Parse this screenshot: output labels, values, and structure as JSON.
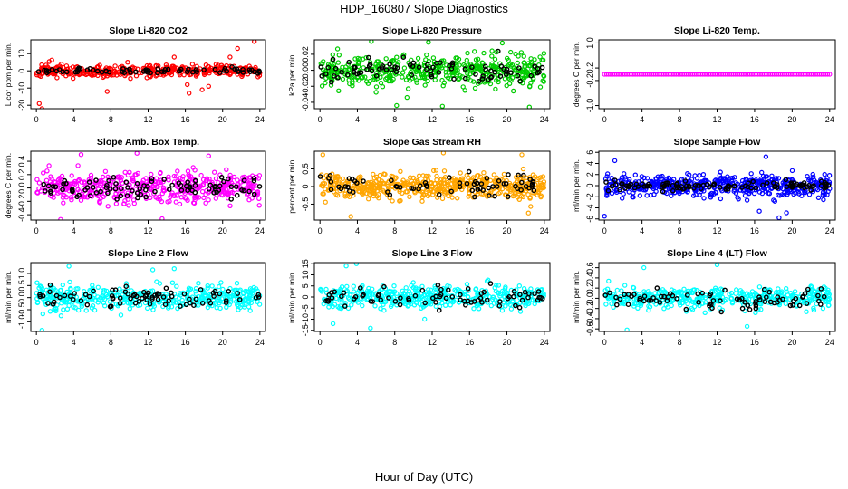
{
  "title": "HDP_160807  Slope Diagnostics",
  "xlabel": "Hour of Day (UTC)",
  "chart_data": [
    {
      "type": "scatter",
      "title": "Slope Li-820 CO2",
      "ylabel": "Licor ppm per min.",
      "color": "#ff0000",
      "xlim": [
        0,
        24
      ],
      "ylim": [
        -22,
        18
      ],
      "xticks": [
        0,
        4,
        8,
        12,
        16,
        20,
        24
      ],
      "yticks": [
        -20,
        -10,
        0,
        10
      ],
      "ytick_labels": [
        "-20",
        "-10",
        "0",
        "10"
      ],
      "spread": 3.2,
      "black_spread": 1.6,
      "density": 380,
      "black_density": 70,
      "seed": 11,
      "extra_points": [
        [
          0.3,
          -19
        ],
        [
          7.6,
          -12
        ],
        [
          16.2,
          -8
        ],
        [
          16.4,
          -13
        ],
        [
          17.8,
          -11
        ],
        [
          18.5,
          -9
        ],
        [
          21.6,
          13
        ],
        [
          23.4,
          17
        ],
        [
          20.8,
          8
        ],
        [
          14.8,
          8
        ],
        [
          9.8,
          5
        ],
        [
          0.6,
          -22
        ]
      ]
    },
    {
      "type": "scatter",
      "title": "Slope Li-820 Pressure",
      "ylabel": "kPa per min.",
      "color": "#00cc00",
      "xlim": [
        0,
        24
      ],
      "ylim": [
        -0.048,
        0.038
      ],
      "xticks": [
        0,
        4,
        8,
        12,
        16,
        20,
        24
      ],
      "yticks": [
        -0.04,
        -0.02,
        0.0,
        0.02
      ],
      "ytick_labels": [
        "-0.04",
        "-0.02",
        "0.00",
        "0.02"
      ],
      "spread": 0.017,
      "black_spread": 0.014,
      "density": 460,
      "black_density": 85,
      "seed": 23,
      "extra_points": [
        [
          19.5,
          0.034
        ],
        [
          5.5,
          0.036
        ],
        [
          11.6,
          0.035
        ],
        [
          22.4,
          -0.046
        ],
        [
          13.1,
          -0.045
        ],
        [
          8.2,
          -0.044
        ]
      ]
    },
    {
      "type": "scatter",
      "title": "Slope Li-820 Temp.",
      "ylabel": "degrees C per min.",
      "color": "#ff00ff",
      "xlim": [
        0,
        24
      ],
      "ylim": [
        -1.1,
        1.1
      ],
      "xticks": [
        0,
        4,
        8,
        12,
        16,
        20,
        24
      ],
      "yticks": [
        -1.0,
        -0.2,
        0.2,
        1.0
      ],
      "ytick_labels": [
        "-1.0",
        "-0.2",
        "0.2",
        "1.0"
      ],
      "spread": 0.0,
      "black_spread": 0.0,
      "density": 110,
      "black_density": 0,
      "seed": 5,
      "flat": true,
      "extra_points": []
    },
    {
      "type": "scatter",
      "title": "Slope Amb. Box Temp.",
      "ylabel": "degrees C per min.",
      "color": "#ff00ff",
      "xlim": [
        0,
        24
      ],
      "ylim": [
        -0.48,
        0.55
      ],
      "xticks": [
        0,
        4,
        8,
        12,
        16,
        20,
        24
      ],
      "yticks": [
        -0.4,
        -0.2,
        0.0,
        0.2,
        0.4
      ],
      "ytick_labels": [
        "-0.4",
        "-0.2",
        "0.0",
        "0.2",
        "0.4"
      ],
      "spread": 0.2,
      "black_spread": 0.17,
      "density": 470,
      "black_density": 90,
      "seed": 37,
      "extra_points": [
        [
          4.8,
          0.5
        ],
        [
          10.8,
          0.52
        ],
        [
          13.5,
          -0.46
        ],
        [
          2.6,
          -0.47
        ],
        [
          18.5,
          0.48
        ]
      ]
    },
    {
      "type": "scatter",
      "title": "Slope Gas Stream RH",
      "ylabel": "percent per min.",
      "color": "#ffa500",
      "xlim": [
        0,
        24
      ],
      "ylim": [
        -0.95,
        1.0
      ],
      "xticks": [
        0,
        4,
        8,
        12,
        16,
        20,
        24
      ],
      "yticks": [
        -0.5,
        0.0,
        0.5
      ],
      "ytick_labels": [
        "-0.5",
        "0",
        "0.5"
      ],
      "spread": 0.32,
      "black_spread": 0.28,
      "density": 520,
      "black_density": 70,
      "seed": 41,
      "extra_points": [
        [
          21.6,
          0.9
        ],
        [
          3.3,
          -0.85
        ],
        [
          22.3,
          -0.75
        ],
        [
          0.3,
          0.9
        ],
        [
          13.2,
          0.95
        ]
      ]
    },
    {
      "type": "scatter",
      "title": "Slope Sample Flow",
      "ylabel": "ml/min per min.",
      "color": "#0000ff",
      "xlim": [
        0,
        24
      ],
      "ylim": [
        -6.2,
        6.2
      ],
      "xticks": [
        0,
        4,
        8,
        12,
        16,
        20,
        24
      ],
      "yticks": [
        -6,
        -4,
        -2,
        0,
        2,
        4,
        6
      ],
      "ytick_labels": [
        "-6",
        "-4",
        "-2",
        "0",
        "2",
        "4",
        "6"
      ],
      "spread": 1.8,
      "black_spread": 0.8,
      "density": 520,
      "black_density": 110,
      "seed": 53,
      "extra_points": [
        [
          0.0,
          -5.5
        ],
        [
          18.6,
          -5.8
        ],
        [
          19.4,
          -4.9
        ],
        [
          16.5,
          -4.6
        ],
        [
          1.1,
          4.5
        ],
        [
          17.2,
          5.2
        ]
      ]
    },
    {
      "type": "scatter",
      "title": "Slope Line 2 Flow",
      "ylabel": "ml/min per min.",
      "color": "#00ffff",
      "xlim": [
        0,
        24
      ],
      "ylim": [
        -1.4,
        1.45
      ],
      "xticks": [
        0,
        4,
        8,
        12,
        16,
        20,
        24
      ],
      "yticks": [
        -1.0,
        -0.5,
        0.0,
        0.5,
        1.0
      ],
      "ytick_labels": [
        "-1.0",
        "-0.5",
        "0.0",
        "0.5",
        "1.0"
      ],
      "spread": 0.42,
      "black_spread": 0.4,
      "density": 420,
      "black_density": 80,
      "seed": 67,
      "extra_points": [
        [
          0.6,
          -1.35
        ],
        [
          12.5,
          1.15
        ],
        [
          14.8,
          1.2
        ],
        [
          3.5,
          1.3
        ]
      ]
    },
    {
      "type": "scatter",
      "title": "Slope Line 3 Flow",
      "ylabel": "ml/min per min.",
      "color": "#00ffff",
      "xlim": [
        0,
        24
      ],
      "ylim": [
        -15.5,
        15.5
      ],
      "xticks": [
        0,
        4,
        8,
        12,
        16,
        20,
        24
      ],
      "yticks": [
        -15,
        -10,
        -5,
        0,
        5,
        10,
        15
      ],
      "ytick_labels": [
        "-15",
        "-10",
        "-5",
        "0",
        "5",
        "10",
        "15"
      ],
      "spread": 4.5,
      "black_spread": 5.0,
      "density": 420,
      "black_density": 75,
      "seed": 79,
      "extra_points": [
        [
          3.9,
          15
        ],
        [
          1.4,
          -12
        ],
        [
          5.4,
          -14
        ],
        [
          2.8,
          14
        ],
        [
          11.2,
          -10
        ]
      ]
    },
    {
      "type": "scatter",
      "title": "Slope Line 4 (LT) Flow",
      "ylabel": "ml/min per min.",
      "color": "#00ffff",
      "xlim": [
        0,
        24
      ],
      "ylim": [
        -0.65,
        0.7
      ],
      "xticks": [
        0,
        4,
        8,
        12,
        16,
        20,
        24
      ],
      "yticks": [
        -0.6,
        -0.4,
        -0.2,
        0.0,
        0.2,
        0.4,
        0.6
      ],
      "ytick_labels": [
        "-0.6",
        "-0.4",
        "-0.2",
        "0.0",
        "0.2",
        "0.4",
        "0.6"
      ],
      "spread": 0.2,
      "black_spread": 0.22,
      "density": 420,
      "black_density": 80,
      "seed": 97,
      "extra_points": [
        [
          2.4,
          -0.62
        ],
        [
          12.0,
          0.66
        ],
        [
          4.2,
          0.6
        ],
        [
          15.2,
          -0.55
        ]
      ]
    }
  ]
}
